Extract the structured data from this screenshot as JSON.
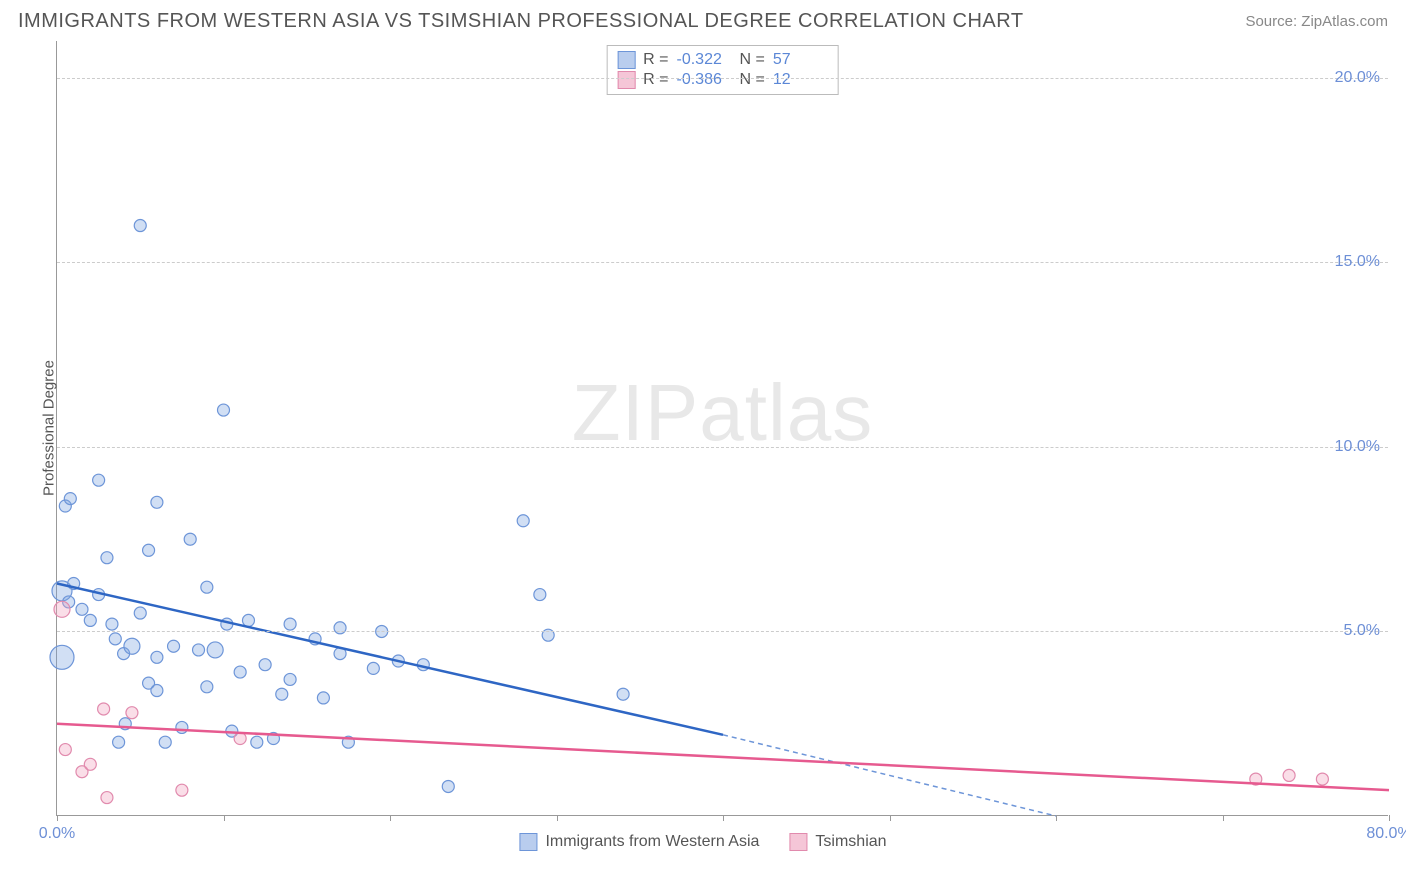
{
  "title": "IMMIGRANTS FROM WESTERN ASIA VS TSIMSHIAN PROFESSIONAL DEGREE CORRELATION CHART",
  "source_label": "Source: ZipAtlas.com",
  "watermark": "ZIPatlas",
  "y_axis_title": "Professional Degree",
  "chart": {
    "type": "scatter",
    "xlim": [
      0,
      80
    ],
    "ylim": [
      0,
      21
    ],
    "x_ticks": [
      0,
      10,
      20,
      30,
      40,
      50,
      60,
      70,
      80
    ],
    "x_tick_labels": {
      "0": "0.0%",
      "80": "80.0%"
    },
    "y_ticks": [
      5,
      10,
      15,
      20
    ],
    "y_tick_labels": {
      "5": "5.0%",
      "10": "10.0%",
      "15": "15.0%",
      "20": "20.0%"
    },
    "grid_color": "#cccccc",
    "background_color": "#ffffff",
    "series": [
      {
        "name": "Immigrants from Western Asia",
        "fill": "rgba(122,163,224,0.35)",
        "stroke": "#6d95d8",
        "line_color": "#2e66c4",
        "dash_color": "#6d95d8",
        "swatch_fill": "#b9cdee",
        "swatch_border": "#6d95d8",
        "R": "-0.322",
        "N": "57",
        "trend": {
          "x1": 0,
          "y1": 6.3,
          "x2": 40,
          "y2": 2.2,
          "x2_dash": 60,
          "y2_dash": 0
        },
        "points": [
          {
            "x": 0.3,
            "y": 4.3,
            "r": 12
          },
          {
            "x": 0.3,
            "y": 6.1,
            "r": 10
          },
          {
            "x": 0.5,
            "y": 8.4,
            "r": 6
          },
          {
            "x": 0.8,
            "y": 8.6,
            "r": 6
          },
          {
            "x": 0.7,
            "y": 5.8,
            "r": 6
          },
          {
            "x": 1.0,
            "y": 6.3,
            "r": 6
          },
          {
            "x": 1.5,
            "y": 5.6,
            "r": 6
          },
          {
            "x": 2.0,
            "y": 5.3,
            "r": 6
          },
          {
            "x": 2.5,
            "y": 9.1,
            "r": 6
          },
          {
            "x": 2.5,
            "y": 6.0,
            "r": 6
          },
          {
            "x": 3.0,
            "y": 7.0,
            "r": 6
          },
          {
            "x": 3.3,
            "y": 5.2,
            "r": 6
          },
          {
            "x": 3.5,
            "y": 4.8,
            "r": 6
          },
          {
            "x": 3.7,
            "y": 2.0,
            "r": 6
          },
          {
            "x": 4.0,
            "y": 4.4,
            "r": 6
          },
          {
            "x": 4.1,
            "y": 2.5,
            "r": 6
          },
          {
            "x": 4.5,
            "y": 4.6,
            "r": 8
          },
          {
            "x": 5.0,
            "y": 16.0,
            "r": 6
          },
          {
            "x": 5.0,
            "y": 5.5,
            "r": 6
          },
          {
            "x": 5.5,
            "y": 7.2,
            "r": 6
          },
          {
            "x": 5.5,
            "y": 3.6,
            "r": 6
          },
          {
            "x": 6.0,
            "y": 8.5,
            "r": 6
          },
          {
            "x": 6.0,
            "y": 4.3,
            "r": 6
          },
          {
            "x": 6.0,
            "y": 3.4,
            "r": 6
          },
          {
            "x": 6.5,
            "y": 2.0,
            "r": 6
          },
          {
            "x": 7.0,
            "y": 4.6,
            "r": 6
          },
          {
            "x": 7.5,
            "y": 2.4,
            "r": 6
          },
          {
            "x": 8.0,
            "y": 7.5,
            "r": 6
          },
          {
            "x": 8.5,
            "y": 4.5,
            "r": 6
          },
          {
            "x": 9.0,
            "y": 6.2,
            "r": 6
          },
          {
            "x": 9.0,
            "y": 3.5,
            "r": 6
          },
          {
            "x": 9.5,
            "y": 4.5,
            "r": 8
          },
          {
            "x": 10.0,
            "y": 11.0,
            "r": 6
          },
          {
            "x": 10.2,
            "y": 5.2,
            "r": 6
          },
          {
            "x": 10.5,
            "y": 2.3,
            "r": 6
          },
          {
            "x": 11.0,
            "y": 3.9,
            "r": 6
          },
          {
            "x": 11.5,
            "y": 5.3,
            "r": 6
          },
          {
            "x": 12.0,
            "y": 2.0,
            "r": 6
          },
          {
            "x": 12.5,
            "y": 4.1,
            "r": 6
          },
          {
            "x": 13.0,
            "y": 2.1,
            "r": 6
          },
          {
            "x": 13.5,
            "y": 3.3,
            "r": 6
          },
          {
            "x": 14.0,
            "y": 5.2,
            "r": 6
          },
          {
            "x": 14.0,
            "y": 3.7,
            "r": 6
          },
          {
            "x": 15.5,
            "y": 4.8,
            "r": 6
          },
          {
            "x": 16.0,
            "y": 3.2,
            "r": 6
          },
          {
            "x": 17.0,
            "y": 5.1,
            "r": 6
          },
          {
            "x": 17.0,
            "y": 4.4,
            "r": 6
          },
          {
            "x": 17.5,
            "y": 2.0,
            "r": 6
          },
          {
            "x": 19.0,
            "y": 4.0,
            "r": 6
          },
          {
            "x": 19.5,
            "y": 5.0,
            "r": 6
          },
          {
            "x": 20.5,
            "y": 4.2,
            "r": 6
          },
          {
            "x": 22.0,
            "y": 4.1,
            "r": 6
          },
          {
            "x": 23.5,
            "y": 0.8,
            "r": 6
          },
          {
            "x": 28.0,
            "y": 8.0,
            "r": 6
          },
          {
            "x": 29.0,
            "y": 6.0,
            "r": 6
          },
          {
            "x": 29.5,
            "y": 4.9,
            "r": 6
          },
          {
            "x": 34.0,
            "y": 3.3,
            "r": 6
          }
        ]
      },
      {
        "name": "Tsimshian",
        "fill": "rgba(240,160,190,0.35)",
        "stroke": "#e18aad",
        "line_color": "#e65a8f",
        "swatch_fill": "#f5c6d7",
        "swatch_border": "#e18aad",
        "R": "-0.386",
        "N": "12",
        "trend": {
          "x1": 0,
          "y1": 2.5,
          "x2": 80,
          "y2": 0.7
        },
        "points": [
          {
            "x": 0.3,
            "y": 5.6,
            "r": 8
          },
          {
            "x": 0.5,
            "y": 1.8,
            "r": 6
          },
          {
            "x": 1.5,
            "y": 1.2,
            "r": 6
          },
          {
            "x": 2.0,
            "y": 1.4,
            "r": 6
          },
          {
            "x": 2.8,
            "y": 2.9,
            "r": 6
          },
          {
            "x": 3.0,
            "y": 0.5,
            "r": 6
          },
          {
            "x": 4.5,
            "y": 2.8,
            "r": 6
          },
          {
            "x": 7.5,
            "y": 0.7,
            "r": 6
          },
          {
            "x": 11.0,
            "y": 2.1,
            "r": 6
          },
          {
            "x": 72.0,
            "y": 1.0,
            "r": 6
          },
          {
            "x": 74.0,
            "y": 1.1,
            "r": 6
          },
          {
            "x": 76.0,
            "y": 1.0,
            "r": 6
          }
        ]
      }
    ]
  },
  "legend_labels": [
    "Immigrants from Western Asia",
    "Tsimshian"
  ]
}
